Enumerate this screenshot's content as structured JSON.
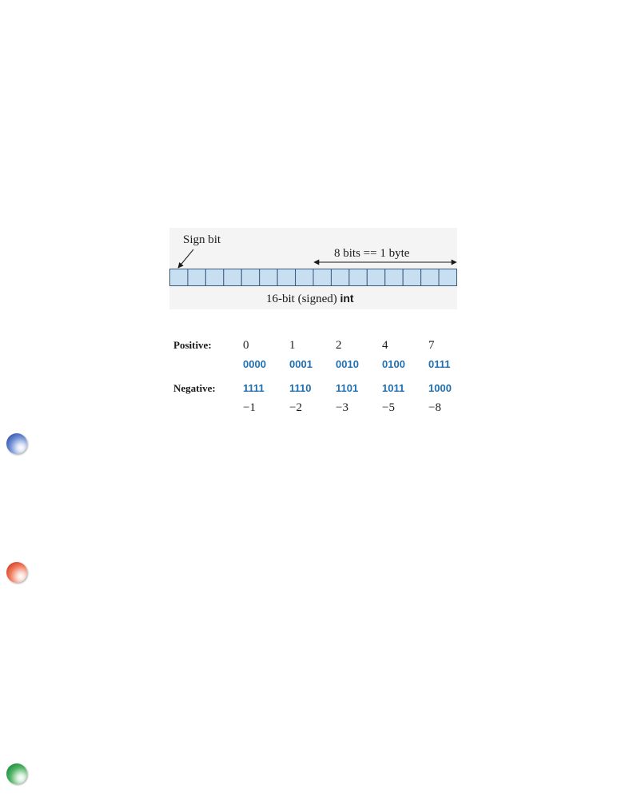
{
  "diagram": {
    "sign_bit_label": "Sign bit",
    "byte_label": "8 bits == 1 byte",
    "int_label_prefix": "16-bit (signed) ",
    "int_label_keyword": "int",
    "bit_count": 16,
    "cell_fill": "#c7dff0",
    "cell_stroke": "#3a5a7a"
  },
  "table": {
    "positive_label": "Positive:",
    "negative_label": "Negative:",
    "positive_decimal": [
      "0",
      "1",
      "2",
      "4",
      "7"
    ],
    "positive_binary": [
      "0000",
      "0001",
      "0010",
      "0100",
      "0111"
    ],
    "negative_binary": [
      "1111",
      "1110",
      "1101",
      "1011",
      "1000"
    ],
    "negative_decimal": [
      "−1",
      "−2",
      "−3",
      "−5",
      "−8"
    ],
    "binary_color": "#1f6fb3"
  },
  "bullets": [
    {
      "name": "blue-bullet",
      "color": "#2a4fa8"
    },
    {
      "name": "red-bullet",
      "color": "#d23b1f"
    },
    {
      "name": "green-bullet",
      "color": "#148a3a"
    }
  ]
}
